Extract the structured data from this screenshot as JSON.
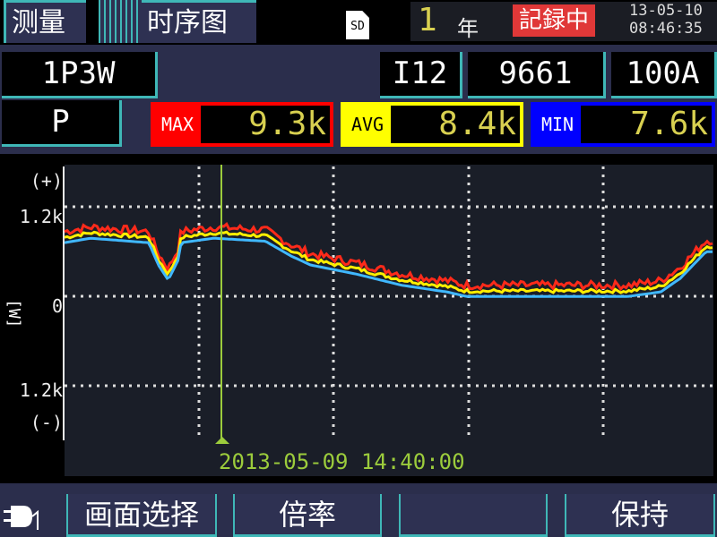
{
  "header": {
    "tabs": [
      {
        "label": "测量",
        "active": false
      },
      {
        "label": "时序图",
        "active": true
      }
    ],
    "sd_label": "SD",
    "interval_value": "1",
    "interval_unit": "年",
    "recording_status": "記録中",
    "date": "13-05-10",
    "time": "08:46:35"
  },
  "settings": {
    "wiring": "1P3W",
    "channel": "I12",
    "sensor": "9661",
    "range": "100A",
    "parameter": "P"
  },
  "stats": [
    {
      "label": "MAX",
      "value": "9.3k",
      "color": "#ff0000"
    },
    {
      "label": "AVG",
      "value": "8.4k",
      "color": "#ffff00"
    },
    {
      "label": "MIN",
      "value": "7.6k",
      "color": "#0000ff"
    }
  ],
  "chart": {
    "y_plus": "(+)",
    "y_minus": "(-)",
    "y_top": "1.2k",
    "y_zero": "0",
    "y_bottom": "1.2k",
    "unit": "[W]",
    "cursor_timestamp": "2013-05-09 14:40:00",
    "cursor_color": "#9ccc3c",
    "series_colors": {
      "max": "#ff2a1a",
      "avg": "#ffee00",
      "min": "#40b8ff"
    }
  },
  "chart_data": {
    "type": "line",
    "ylim": [
      -1.2,
      1.2
    ],
    "ylabel": "[W]",
    "grid": true,
    "x_position_fraction": [
      0,
      0.04,
      0.13,
      0.145,
      0.16,
      0.175,
      0.18,
      0.23,
      0.31,
      0.35,
      0.38,
      0.45,
      0.52,
      0.59,
      0.62,
      0.73,
      0.87,
      0.92,
      0.95,
      0.99
    ],
    "values_k": [
      0.73,
      0.79,
      0.73,
      0.43,
      0.23,
      0.49,
      0.73,
      0.79,
      0.75,
      0.55,
      0.43,
      0.31,
      0.16,
      0.07,
      0.01,
      0.01,
      0.01,
      0.07,
      0.25,
      0.61
    ]
  },
  "footer": {
    "buttons": [
      "画面选择",
      "倍率",
      "",
      "保持"
    ],
    "power_icon": "ac-plug-icon"
  }
}
